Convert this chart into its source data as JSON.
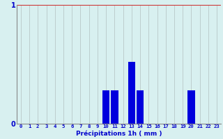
{
  "hours": [
    0,
    1,
    2,
    3,
    4,
    5,
    6,
    7,
    8,
    9,
    10,
    11,
    12,
    13,
    14,
    15,
    16,
    17,
    18,
    19,
    20,
    21,
    22,
    23
  ],
  "values": [
    0,
    0,
    0,
    0,
    0,
    0,
    0,
    0,
    0,
    0,
    0.28,
    0.28,
    0,
    0.52,
    0.28,
    0,
    0,
    0,
    0,
    0,
    0.28,
    0,
    0,
    0
  ],
  "bar_color": "#0000dd",
  "background_color": "#d8f0f0",
  "grid_color_v": "#b8c8c8",
  "grid_color_h_top": "#cc3333",
  "xlabel": "Précipitations 1h ( mm )",
  "xlabel_color": "#0000cc",
  "tick_color": "#0000cc",
  "axis_color": "#888888",
  "ylim": [
    0,
    1.0
  ],
  "yticks": [
    0,
    1
  ],
  "bar_width": 0.85,
  "tick_fontsize": 5.2,
  "xlabel_fontsize": 6.5
}
